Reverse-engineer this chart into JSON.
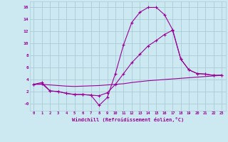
{
  "xlabel": "Windchill (Refroidissement éolien,°C)",
  "background_color": "#cce8f0",
  "grid_color": "#aaccd8",
  "line_color": "#990099",
  "xlim": [
    -0.5,
    23.5
  ],
  "ylim": [
    -1.2,
    17.0
  ],
  "xticks": [
    0,
    1,
    2,
    3,
    4,
    5,
    6,
    7,
    8,
    9,
    10,
    11,
    12,
    13,
    14,
    15,
    16,
    17,
    18,
    19,
    20,
    21,
    22,
    23
  ],
  "yticks": [
    0,
    2,
    4,
    6,
    8,
    10,
    12,
    14,
    16
  ],
  "ytick_labels": [
    "-0",
    "2",
    "4",
    "6",
    "8",
    "10",
    "12",
    "14",
    "16"
  ],
  "line1_x": [
    0,
    1,
    2,
    3,
    4,
    5,
    6,
    7,
    8,
    9,
    10,
    11,
    12,
    13,
    14,
    15,
    16,
    17,
    18,
    19,
    20,
    21,
    22,
    23
  ],
  "line1_y": [
    3.2,
    3.5,
    2.1,
    2.0,
    1.7,
    1.5,
    1.5,
    1.4,
    -0.3,
    1.0,
    5.0,
    9.8,
    13.5,
    15.2,
    16.0,
    16.0,
    14.8,
    12.3,
    7.4,
    5.6,
    5.0,
    4.9,
    4.7,
    4.7
  ],
  "line2_x": [
    0,
    1,
    2,
    3,
    4,
    5,
    6,
    7,
    8,
    9,
    10,
    11,
    12,
    13,
    14,
    15,
    16,
    17,
    18,
    19,
    20,
    21,
    22,
    23
  ],
  "line2_y": [
    3.2,
    3.2,
    3.1,
    3.0,
    2.9,
    2.85,
    2.9,
    2.95,
    3.0,
    3.1,
    3.2,
    3.3,
    3.5,
    3.65,
    3.8,
    3.9,
    4.0,
    4.1,
    4.2,
    4.3,
    4.4,
    4.5,
    4.6,
    4.7
  ],
  "line3_x": [
    0,
    1,
    2,
    3,
    4,
    5,
    6,
    7,
    8,
    9,
    10,
    11,
    12,
    13,
    14,
    15,
    16,
    17,
    18,
    19,
    20,
    21,
    22,
    23
  ],
  "line3_y": [
    3.2,
    3.3,
    2.1,
    2.0,
    1.7,
    1.5,
    1.5,
    1.4,
    1.3,
    1.8,
    3.2,
    5.0,
    6.8,
    8.2,
    9.6,
    10.5,
    11.5,
    12.2,
    7.4,
    5.6,
    5.0,
    4.9,
    4.7,
    4.7
  ]
}
